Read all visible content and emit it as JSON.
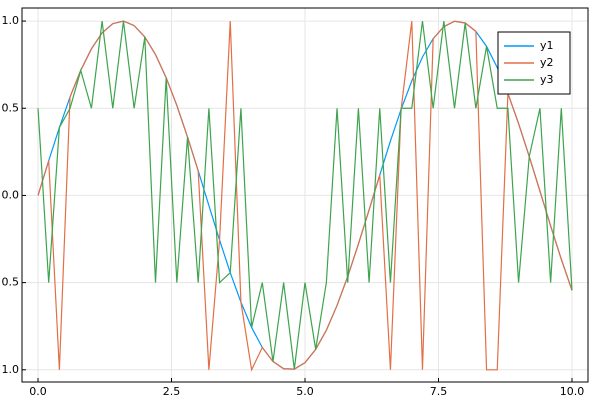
{
  "chart_data": {
    "type": "line",
    "x": [
      0,
      0.2,
      0.4,
      0.6,
      0.8,
      1,
      1.2,
      1.4,
      1.6,
      1.8,
      2,
      2.2,
      2.4,
      2.6,
      2.8,
      3,
      3.2,
      3.4,
      3.6,
      3.8,
      4,
      4.2,
      4.4,
      4.6,
      4.8,
      5,
      5.2,
      5.4,
      5.6,
      5.8,
      6,
      6.2,
      6.4,
      6.6,
      6.8,
      7,
      7.2,
      7.4,
      7.6,
      7.8,
      8,
      8.2,
      8.4,
      8.6,
      8.8,
      9,
      9.2,
      9.4,
      9.6,
      9.8,
      10
    ],
    "series": [
      {
        "name": "y1",
        "color": "#009af9",
        "values": [
          0,
          0.199,
          0.389,
          0.565,
          0.717,
          0.841,
          0.932,
          0.985,
          1.0,
          0.974,
          0.909,
          0.808,
          0.675,
          0.516,
          0.335,
          0.141,
          -0.058,
          -0.256,
          -0.443,
          -0.612,
          -0.757,
          -0.872,
          -0.952,
          -0.994,
          -0.996,
          -0.959,
          -0.883,
          -0.773,
          -0.631,
          -0.465,
          -0.279,
          -0.083,
          0.117,
          0.312,
          0.494,
          0.657,
          0.794,
          0.899,
          0.968,
          0.999,
          0.989,
          0.941,
          0.855,
          0.734,
          0.585,
          0.412,
          0.223,
          0.025,
          -0.174,
          -0.366,
          -0.544
        ]
      },
      {
        "name": "y2",
        "color": "#e26f46",
        "values": [
          0,
          0.199,
          -1,
          0.565,
          0.717,
          0.841,
          0.932,
          0.985,
          1.0,
          0.974,
          0.909,
          0.808,
          0.675,
          0.516,
          0.335,
          0.141,
          -1,
          -0.256,
          1,
          -0.612,
          -1,
          -0.872,
          -0.952,
          -0.994,
          -0.996,
          -0.959,
          -0.883,
          -0.773,
          -0.631,
          -0.465,
          -0.279,
          -0.083,
          0.117,
          -1,
          0.494,
          1,
          -1,
          0.899,
          0.968,
          0.999,
          0.989,
          0.941,
          -1,
          -1,
          0.585,
          0.412,
          0.223,
          0.025,
          -0.174,
          -0.366,
          -0.544
        ]
      },
      {
        "name": "y3",
        "color": "#3da44d",
        "values": [
          0.5,
          -0.5,
          0.389,
          0.5,
          0.717,
          0.5,
          1.0,
          0.5,
          1.0,
          0.5,
          0.909,
          -0.5,
          0.675,
          -0.5,
          0.335,
          -0.5,
          0.5,
          -0.5,
          -0.443,
          0.5,
          -0.757,
          -0.5,
          -0.952,
          -0.5,
          -0.996,
          -0.5,
          -0.883,
          -0.5,
          0.5,
          -0.5,
          0.5,
          -0.5,
          0.5,
          -0.5,
          0.5,
          0.5,
          1.0,
          0.5,
          1.0,
          0.5,
          0.989,
          0.5,
          0.855,
          0.5,
          0.5,
          -0.5,
          0.223,
          0.5,
          -0.5,
          0.5,
          -0.544
        ]
      }
    ],
    "xlim": [
      -0.3,
      10.3
    ],
    "ylim": [
      -1.07,
      1.075
    ],
    "xticks": [
      {
        "value": 0,
        "label": "0.0"
      },
      2.5,
      {
        "value": 5,
        "label": "5.0"
      },
      7.5,
      {
        "value": 10,
        "label": "10.0"
      }
    ],
    "yticks": [
      {
        "value": -1,
        "label": "1.0"
      },
      {
        "value": -0.5,
        "label": "0.5"
      },
      {
        "value": 0,
        "label": "0.0"
      },
      0.5,
      {
        "value": 1,
        "label": "1.0"
      }
    ],
    "grid": true,
    "legend": "top-right"
  }
}
